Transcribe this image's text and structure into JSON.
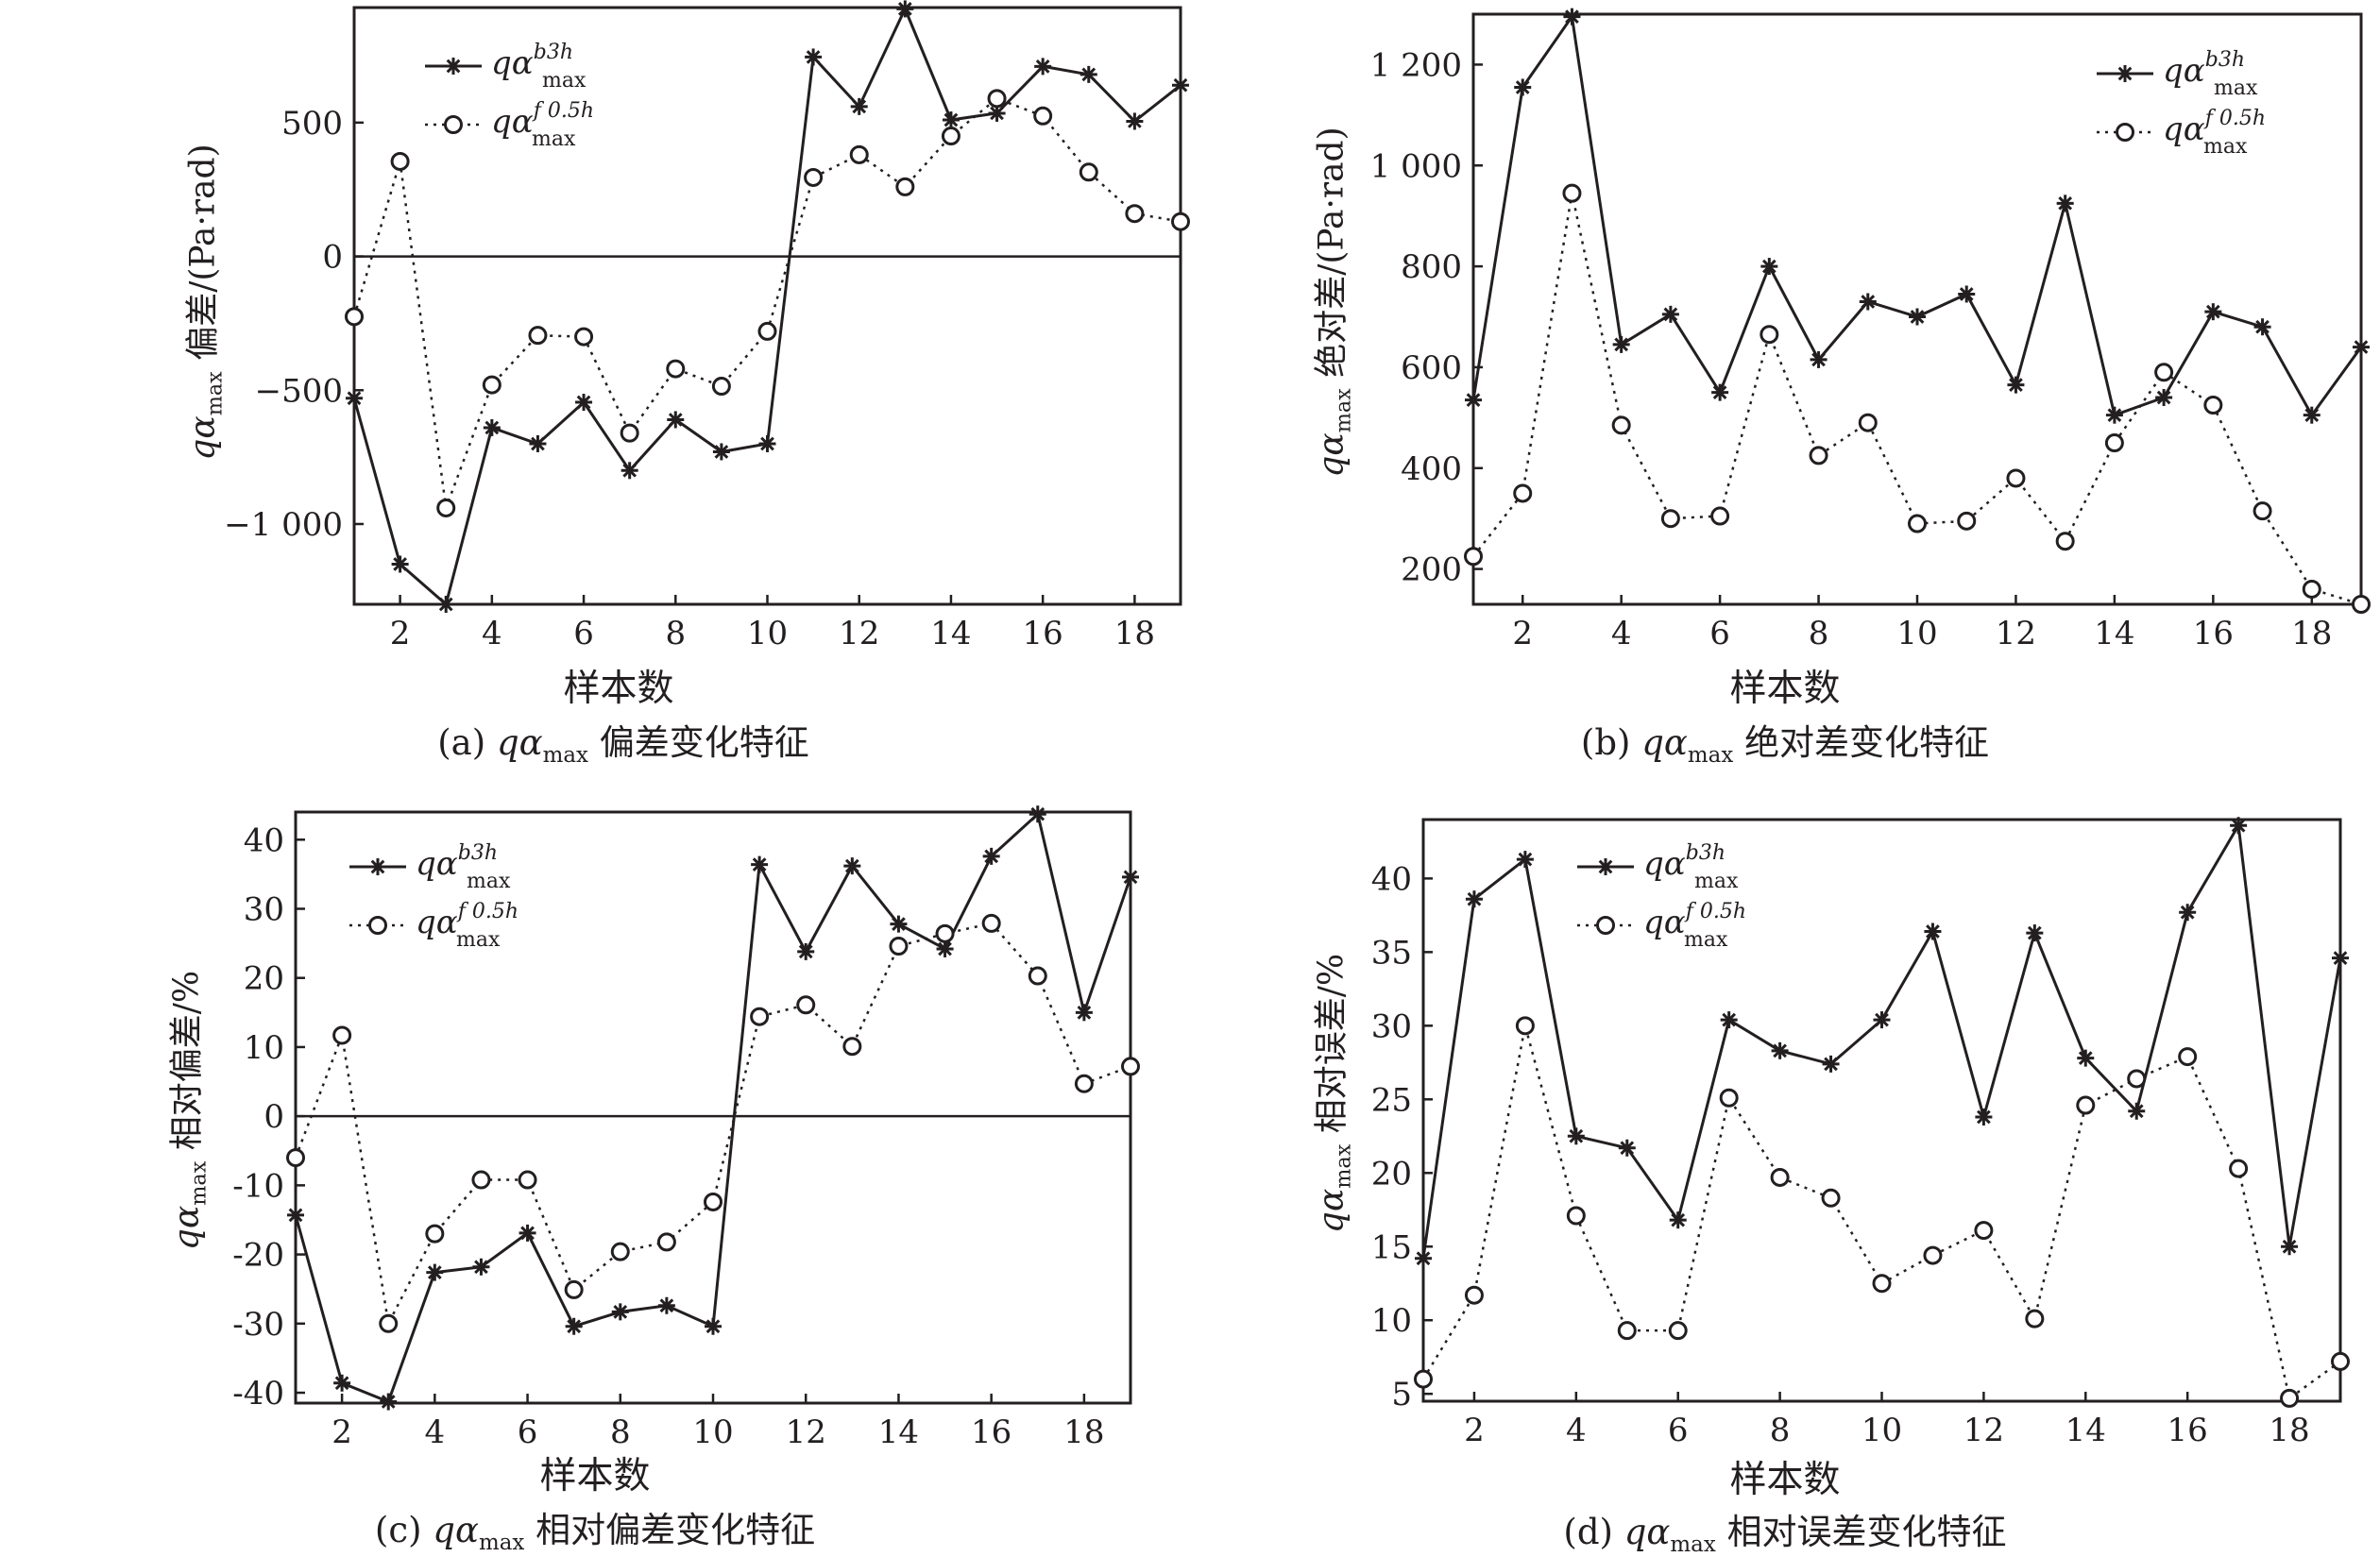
{
  "legend": {
    "series1_base": "qα",
    "series1_sub": "max",
    "series1_sup": "b3h",
    "series2_base": "qα",
    "series2_sub": "max",
    "series2_sup": "f 0.5h"
  },
  "chart_data": [
    {
      "id": "a",
      "type": "line",
      "caption_prefix": "(a)",
      "caption_base": "qα",
      "caption_sub": "max",
      "caption_suffix": "偏差变化特征",
      "xlabel": "样本数",
      "ylabel_base": "qα",
      "ylabel_sub": "max",
      "ylabel_text": "偏差/(Pa·rad)",
      "x": [
        1,
        2,
        3,
        4,
        5,
        6,
        7,
        8,
        9,
        10,
        11,
        12,
        13,
        14,
        15,
        16,
        17,
        18,
        19
      ],
      "xlim": [
        1,
        19
      ],
      "ylim": [
        -1300,
        930
      ],
      "xticks": [
        2,
        4,
        6,
        8,
        10,
        12,
        14,
        16,
        18
      ],
      "yticks": [
        -1000,
        -500,
        0,
        500
      ],
      "ytick_labels": [
        "−1 000",
        "−500",
        "0",
        "500"
      ],
      "zero_line": true,
      "legend_position": "top-left",
      "series": [
        {
          "name": "qα_max^b3h",
          "style": "solid-star",
          "values": [
            -530,
            -1150,
            -1300,
            -640,
            -700,
            -545,
            -800,
            -610,
            -730,
            -700,
            745,
            560,
            925,
            510,
            535,
            710,
            680,
            505,
            640
          ]
        },
        {
          "name": "qα_max^f0.5h",
          "style": "dotted-circle",
          "values": [
            -225,
            355,
            -940,
            -480,
            -295,
            -300,
            -660,
            -420,
            -485,
            -280,
            295,
            380,
            260,
            450,
            590,
            525,
            315,
            160,
            130
          ]
        }
      ]
    },
    {
      "id": "b",
      "type": "line",
      "caption_prefix": "(b)",
      "caption_base": "qα",
      "caption_sub": "max",
      "caption_suffix": "绝对差变化特征",
      "xlabel": "样本数",
      "ylabel_base": "qα",
      "ylabel_sub": "max",
      "ylabel_text": "绝对差/(Pa·rad)",
      "x": [
        1,
        2,
        3,
        4,
        5,
        6,
        7,
        8,
        9,
        10,
        11,
        12,
        13,
        14,
        15,
        16,
        17,
        18,
        19
      ],
      "xlim": [
        1,
        19
      ],
      "ylim": [
        130,
        1300
      ],
      "xticks": [
        2,
        4,
        6,
        8,
        10,
        12,
        14,
        16,
        18
      ],
      "yticks": [
        200,
        400,
        600,
        800,
        1000,
        1200
      ],
      "ytick_labels": [
        "200",
        "400",
        "600",
        "800",
        "1 000",
        "1 200"
      ],
      "zero_line": false,
      "legend_position": "top-right",
      "series": [
        {
          "name": "qα_max^b3h",
          "style": "solid-star",
          "values": [
            535,
            1155,
            1295,
            645,
            705,
            550,
            800,
            615,
            730,
            700,
            745,
            565,
            925,
            505,
            540,
            710,
            680,
            505,
            640
          ]
        },
        {
          "name": "qα_max^f0.5h",
          "style": "dotted-circle",
          "values": [
            225,
            350,
            945,
            485,
            300,
            305,
            665,
            425,
            490,
            290,
            295,
            380,
            255,
            450,
            590,
            525,
            315,
            160,
            130
          ]
        }
      ]
    },
    {
      "id": "c",
      "type": "line",
      "caption_prefix": "(c)",
      "caption_base": "qα",
      "caption_sub": "max",
      "caption_suffix": "相对偏差变化特征",
      "xlabel": "样本数",
      "ylabel_base": "qα",
      "ylabel_sub": "max",
      "ylabel_text": "相对偏差/%",
      "x": [
        1,
        2,
        3,
        4,
        5,
        6,
        7,
        8,
        9,
        10,
        11,
        12,
        13,
        14,
        15,
        16,
        17,
        18,
        19
      ],
      "xlim": [
        1,
        19
      ],
      "ylim": [
        -41.5,
        44
      ],
      "xticks": [
        2,
        4,
        6,
        8,
        10,
        12,
        14,
        16,
        18
      ],
      "yticks": [
        -40,
        -30,
        -20,
        -10,
        0,
        10,
        20,
        30,
        40
      ],
      "ytick_labels": [
        "-40",
        "-30",
        "-20",
        "-10",
        "0",
        "10",
        "20",
        "30",
        "40"
      ],
      "zero_line": true,
      "legend_position": "top-left",
      "series": [
        {
          "name": "qα_max^b3h",
          "style": "solid-star",
          "values": [
            -14.3,
            -38.6,
            -41.3,
            -22.6,
            -21.8,
            -16.9,
            -30.4,
            -28.3,
            -27.4,
            -30.4,
            36.4,
            23.8,
            36.2,
            27.8,
            24.2,
            37.6,
            43.7,
            15.0,
            34.6
          ]
        },
        {
          "name": "qα_max^f0.5h",
          "style": "dotted-circle",
          "values": [
            -6.0,
            11.7,
            -30.0,
            -17.0,
            -9.2,
            -9.2,
            -25.1,
            -19.6,
            -18.2,
            -12.4,
            14.4,
            16.1,
            10.1,
            24.6,
            26.4,
            27.9,
            20.3,
            4.7,
            7.2
          ]
        }
      ]
    },
    {
      "id": "d",
      "type": "line",
      "caption_prefix": "(d)",
      "caption_base": "qα",
      "caption_sub": "max",
      "caption_suffix": "相对误差变化特征",
      "xlabel": "样本数",
      "ylabel_base": "qα",
      "ylabel_sub": "max",
      "ylabel_text": "相对误差/%",
      "x": [
        1,
        2,
        3,
        4,
        5,
        6,
        7,
        8,
        9,
        10,
        11,
        12,
        13,
        14,
        15,
        16,
        17,
        18,
        19
      ],
      "xlim": [
        1,
        19
      ],
      "ylim": [
        4.5,
        44
      ],
      "xticks": [
        2,
        4,
        6,
        8,
        10,
        12,
        14,
        16,
        18
      ],
      "yticks": [
        5,
        10,
        15,
        20,
        25,
        30,
        35,
        40
      ],
      "ytick_labels": [
        "5",
        "10",
        "15",
        "20",
        "25",
        "30",
        "35",
        "40"
      ],
      "zero_line": false,
      "legend_position": "top-left",
      "series": [
        {
          "name": "qα_max^b3h",
          "style": "solid-star",
          "values": [
            14.2,
            38.6,
            41.3,
            22.5,
            21.7,
            16.8,
            30.4,
            28.3,
            27.4,
            30.4,
            36.4,
            23.8,
            36.3,
            27.8,
            24.2,
            37.7,
            43.6,
            15.0,
            34.6
          ]
        },
        {
          "name": "qα_max^f0.5h",
          "style": "dotted-circle",
          "values": [
            6.0,
            11.7,
            30.0,
            17.1,
            9.3,
            9.3,
            25.1,
            19.7,
            18.3,
            12.5,
            14.4,
            16.1,
            10.1,
            24.6,
            26.4,
            27.9,
            20.3,
            4.7,
            7.2
          ]
        }
      ]
    }
  ]
}
